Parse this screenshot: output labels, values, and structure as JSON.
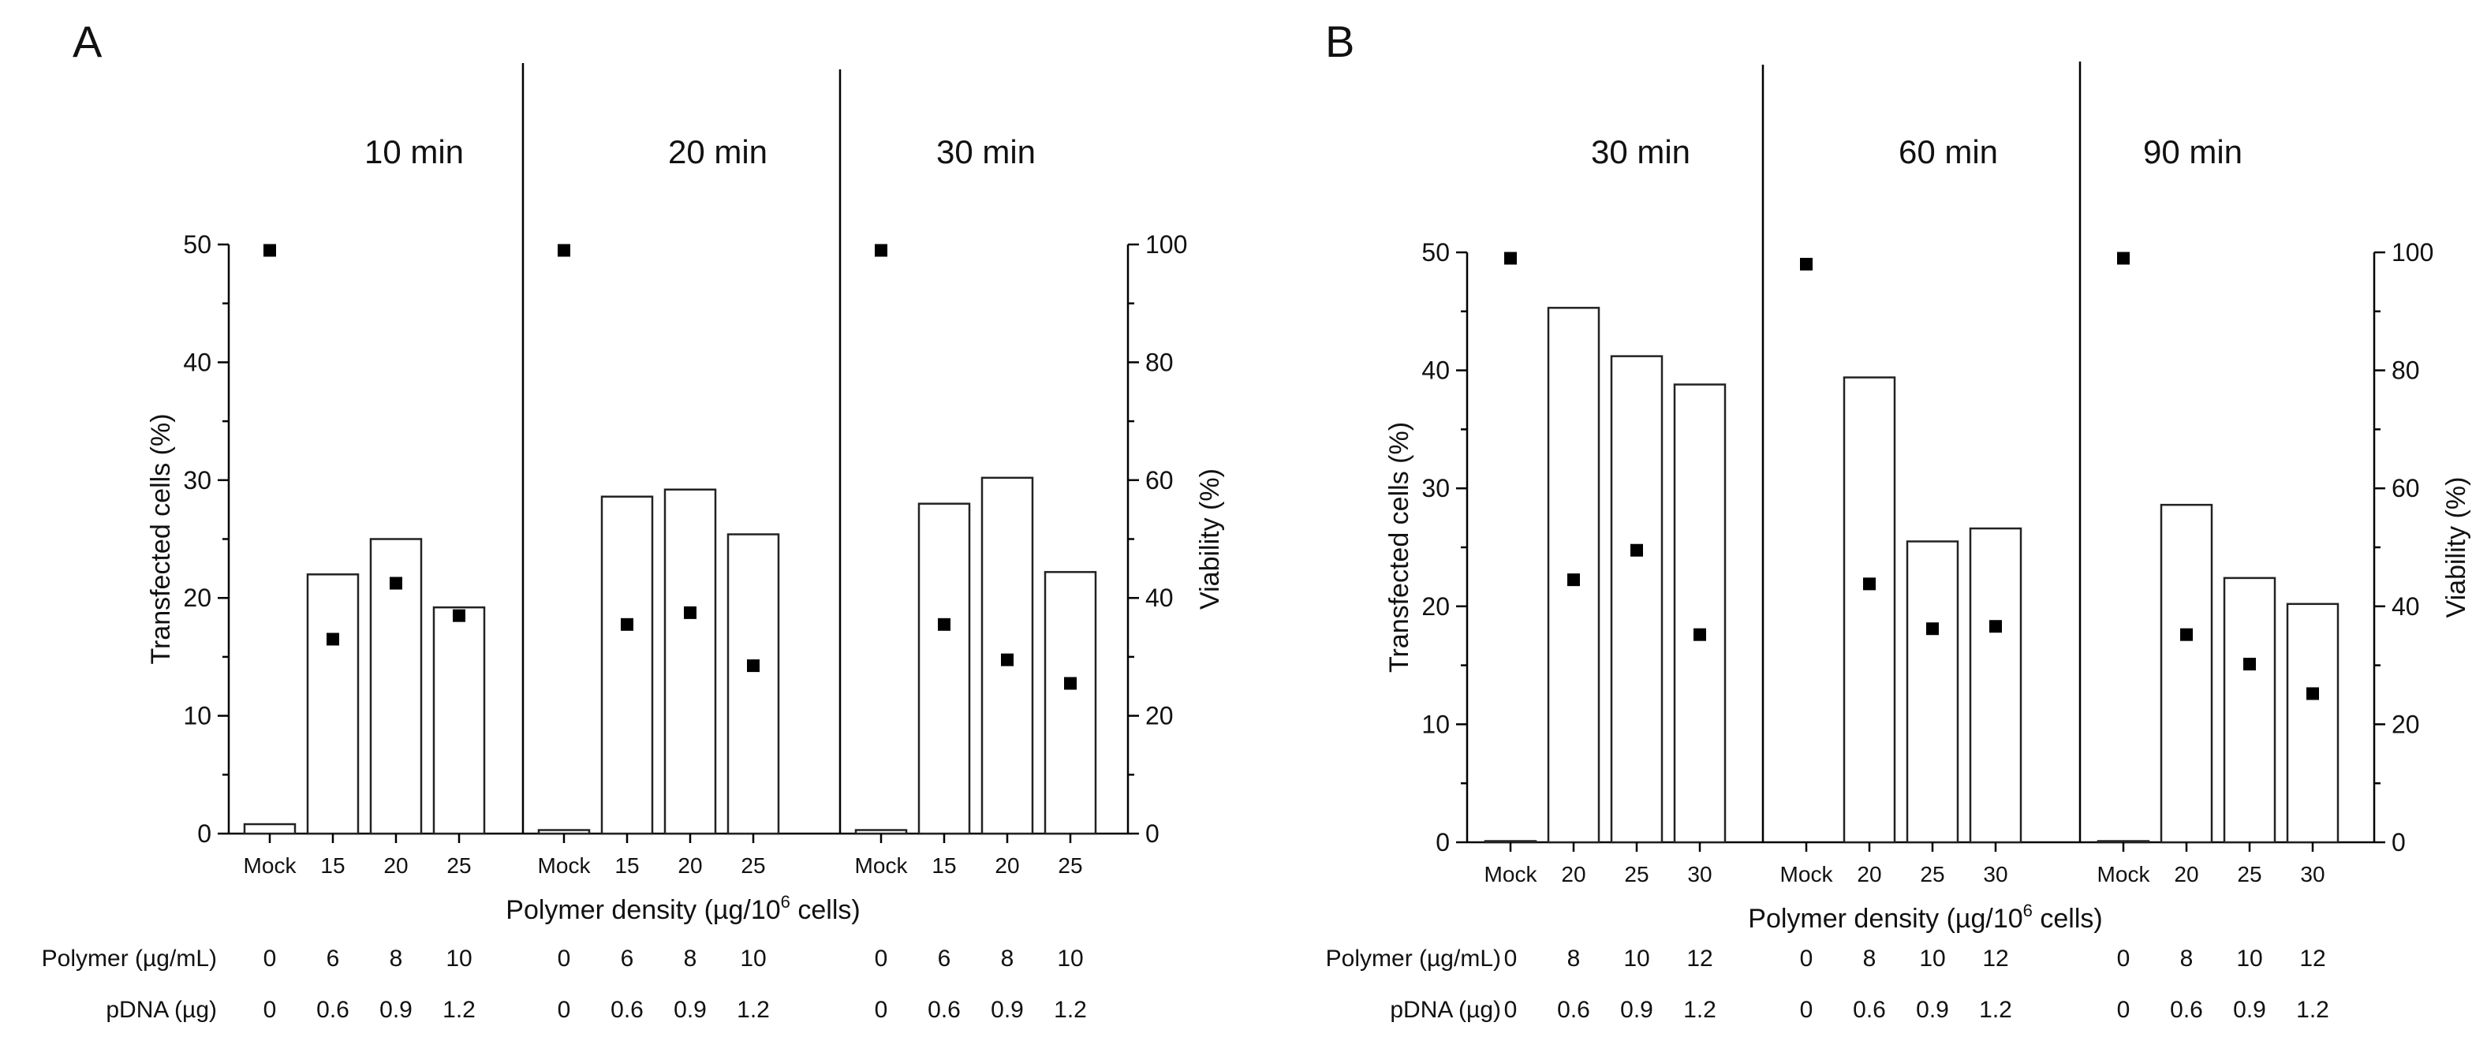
{
  "chart_data": [
    {
      "type": "bar",
      "panel_label": "A",
      "xlabel_parts": [
        "Polymer density (µg/10",
        "6",
        " cells)"
      ],
      "ylabel": "Transfected cells (%)",
      "y2label": "Viability (%)",
      "ylim": [
        0,
        50
      ],
      "y2lim": [
        0,
        100
      ],
      "yticks": [
        "0",
        "10",
        "20",
        "30",
        "40",
        "50"
      ],
      "y2ticks": [
        "0",
        "20",
        "40",
        "60",
        "80",
        "100"
      ],
      "groups": [
        {
          "label": "10 min",
          "categories": [
            "Mock",
            "15",
            "20",
            "25"
          ],
          "transfected": [
            0.8,
            22,
            25,
            19.2
          ],
          "viability": [
            99,
            33,
            42.5,
            37
          ]
        },
        {
          "label": "20 min",
          "categories": [
            "Mock",
            "15",
            "20",
            "25"
          ],
          "transfected": [
            0.3,
            28.6,
            29.2,
            25.4
          ],
          "viability": [
            99,
            35.5,
            37.5,
            28.5
          ]
        },
        {
          "label": "30 min",
          "categories": [
            "Mock",
            "15",
            "20",
            "25"
          ],
          "transfected": [
            0.3,
            28,
            30.2,
            22.2
          ],
          "viability": [
            99,
            35.5,
            29.5,
            25.5
          ]
        }
      ],
      "rows": [
        {
          "label": "Polymer (µg/mL)",
          "values": [
            "0",
            "6",
            "8",
            "10",
            "0",
            "6",
            "8",
            "10",
            "0",
            "6",
            "8",
            "10"
          ]
        },
        {
          "label": "pDNA (µg)",
          "values": [
            "0",
            "0.6",
            "0.9",
            "1.2",
            "0",
            "0.6",
            "0.9",
            "1.2",
            "0",
            "0.6",
            "0.9",
            "1.2"
          ]
        }
      ]
    },
    {
      "type": "bar",
      "panel_label": "B",
      "xlabel_parts": [
        "Polymer density (µg/10",
        "6",
        " cells)"
      ],
      "ylabel": "Transfected cells (%)",
      "y2label": "Viability (%)",
      "ylim": [
        0,
        50
      ],
      "y2lim": [
        0,
        100
      ],
      "yticks": [
        "0",
        "10",
        "20",
        "30",
        "40",
        "50"
      ],
      "y2ticks": [
        "0",
        "20",
        "40",
        "60",
        "80",
        "100"
      ],
      "groups": [
        {
          "label": "30 min",
          "categories": [
            "Mock",
            "20",
            "25",
            "30"
          ],
          "transfected": [
            0.1,
            45.3,
            41.2,
            38.8
          ],
          "viability": [
            99,
            44.5,
            49.5,
            35.2
          ]
        },
        {
          "label": "60 min",
          "categories": [
            "Mock",
            "20",
            "25",
            "30"
          ],
          "transfected": [
            0,
            39.4,
            25.5,
            26.6
          ],
          "viability": [
            98,
            43.8,
            36.2,
            36.6
          ]
        },
        {
          "label": "90 min",
          "categories": [
            "Mock",
            "20",
            "25",
            "30"
          ],
          "transfected": [
            0.1,
            28.6,
            22.4,
            20.2
          ],
          "viability": [
            99,
            35.2,
            30.2,
            25.2
          ]
        }
      ],
      "rows": [
        {
          "label": "Polymer (µg/mL)",
          "values": [
            "0",
            "8",
            "10",
            "12",
            "0",
            "8",
            "10",
            "12",
            "0",
            "8",
            "10",
            "12"
          ]
        },
        {
          "label": "pDNA (µg)",
          "values": [
            "0",
            "0.6",
            "0.9",
            "1.2",
            "0",
            "0.6",
            "0.9",
            "1.2",
            "0",
            "0.6",
            "0.9",
            "1.2"
          ]
        }
      ]
    }
  ]
}
